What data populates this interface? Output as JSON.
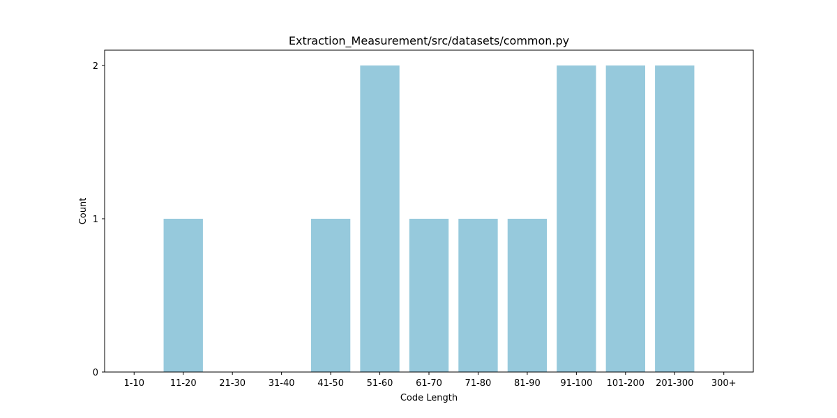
{
  "chart_data": {
    "type": "bar",
    "title": "Extraction_Measurement/src/datasets/common.py",
    "xlabel": "Code Length",
    "ylabel": "Count",
    "categories": [
      "1-10",
      "11-20",
      "21-30",
      "31-40",
      "41-50",
      "51-60",
      "61-70",
      "71-80",
      "81-90",
      "91-100",
      "101-200",
      "201-300",
      "300+"
    ],
    "values": [
      0,
      1,
      0,
      0,
      1,
      2,
      1,
      1,
      1,
      2,
      2,
      2,
      0
    ],
    "ylim": [
      0,
      2.1
    ],
    "yticks": [
      0,
      1,
      2
    ],
    "grid": false,
    "legend": "none",
    "bar_color": "#96c9dc"
  }
}
